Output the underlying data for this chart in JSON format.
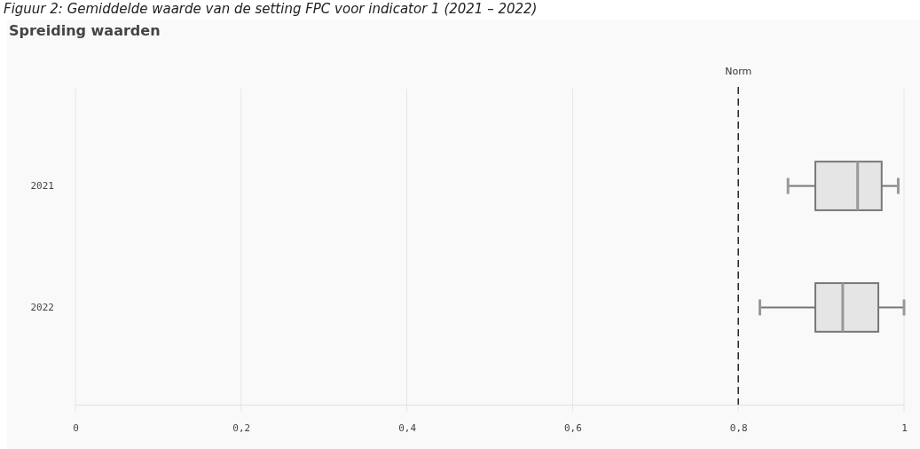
{
  "chart_data": {
    "type": "box",
    "title": "Figuur 2: Gemiddelde waarde van de setting FPC voor indicator 1 (2021 – 2022)",
    "subtitle": "Spreiding waarden",
    "orientation": "horizontal",
    "categories": [
      "2021",
      "2022"
    ],
    "boxes": [
      {
        "low": 0.86,
        "q1": 0.893,
        "median": 0.944,
        "q3": 0.973,
        "high": 0.993
      },
      {
        "low": 0.826,
        "q1": 0.893,
        "median": 0.926,
        "q3": 0.969,
        "high": 1.0
      }
    ],
    "color": "#e5e5e5",
    "xlim": [
      0,
      1
    ],
    "xticks": [
      0,
      {
        "value": 0.2,
        "label": "0,2"
      },
      {
        "value": 0.4,
        "label": "0,4"
      },
      {
        "value": 0.6,
        "label": "0,6"
      },
      {
        "value": 0.8,
        "label": "0,8"
      },
      1
    ],
    "grid": "x",
    "ref_lines": [
      {
        "axis": "x",
        "value": 0.8,
        "label": "Norm",
        "color": "#222222",
        "line_style": "dashed"
      }
    ]
  }
}
